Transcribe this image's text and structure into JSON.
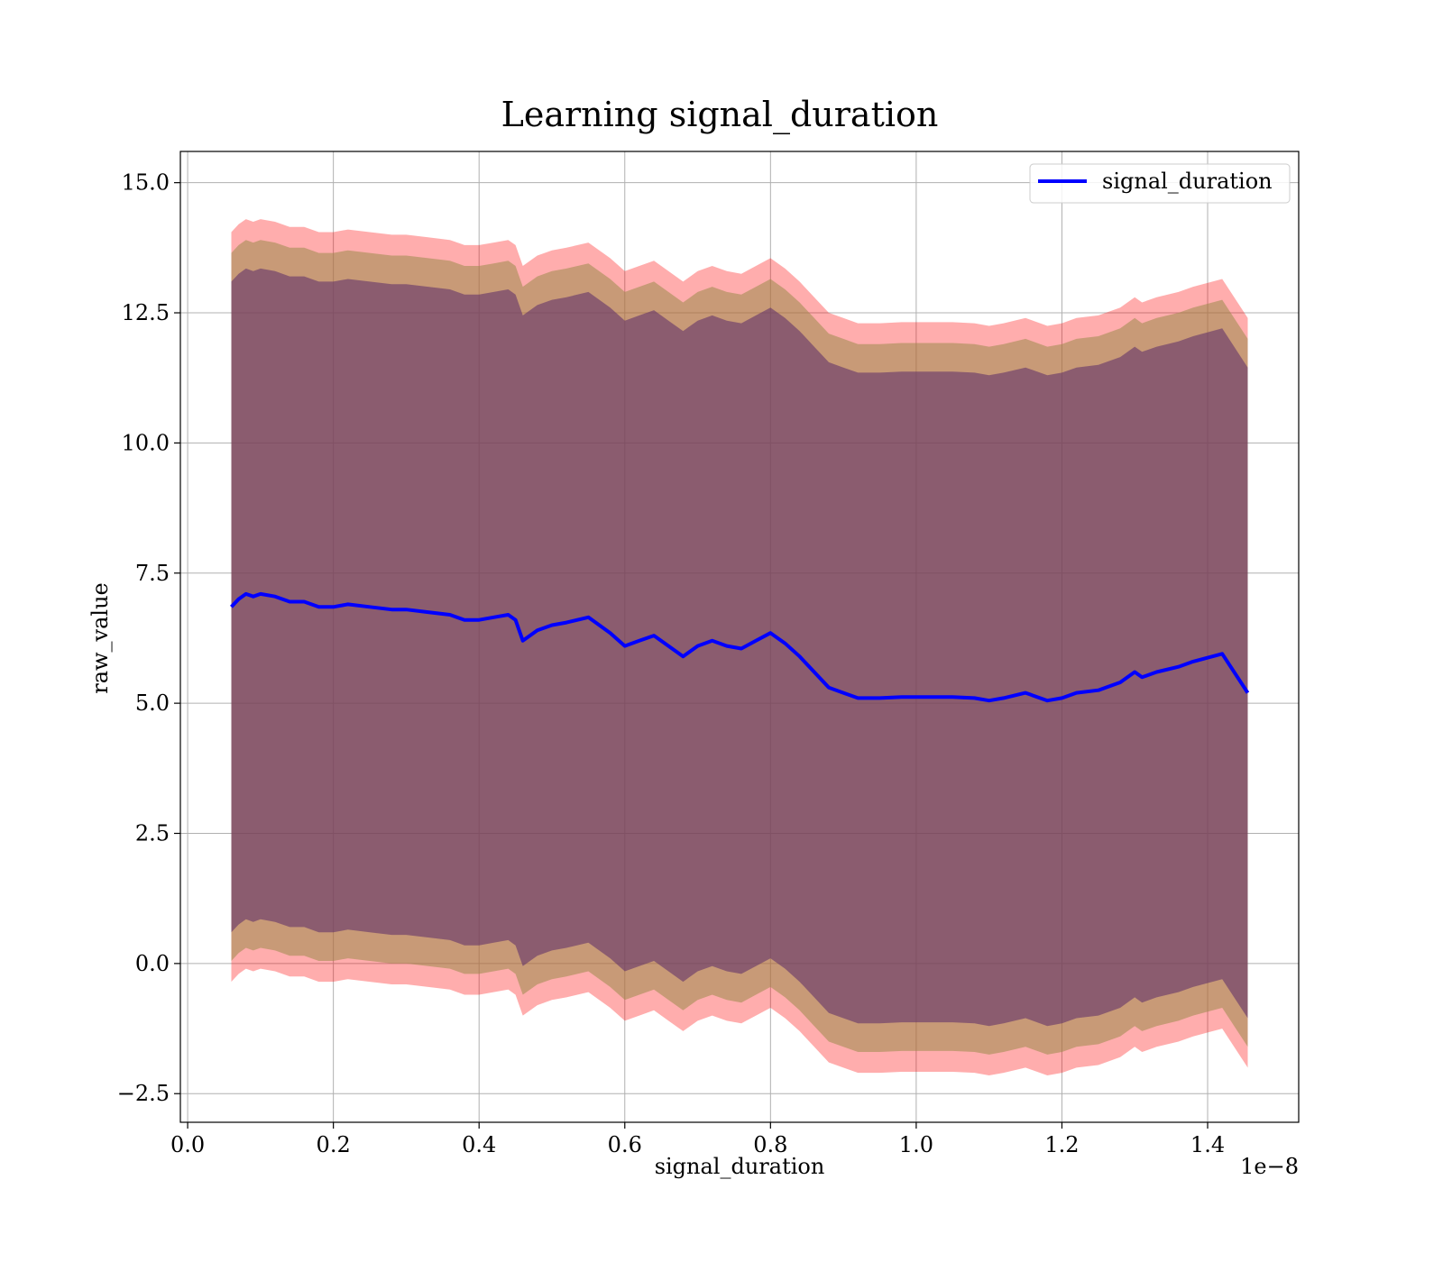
{
  "chart_data": {
    "type": "line",
    "title": "Learning signal_duration",
    "xlabel": "signal_duration",
    "ylabel": "raw_value",
    "x_scale_note": "1e−8",
    "xlim": [
      -0.01,
      1.525
    ],
    "ylim": [
      -3.05,
      15.6
    ],
    "x_ticks": [
      0.0,
      0.2,
      0.4,
      0.6,
      0.8,
      1.0,
      1.2,
      1.4
    ],
    "x_tick_labels": [
      "0.0",
      "0.2",
      "0.4",
      "0.6",
      "0.8",
      "1.0",
      "1.2",
      "1.4"
    ],
    "y_ticks": [
      -2.5,
      0.0,
      2.5,
      5.0,
      7.5,
      10.0,
      12.5,
      15.0
    ],
    "y_tick_labels": [
      "−2.5",
      "0.0",
      "2.5",
      "5.0",
      "7.5",
      "10.0",
      "12.5",
      "15.0"
    ],
    "grid": true,
    "legend": {
      "position": "top-right",
      "entries": [
        "signal_duration"
      ]
    },
    "colors": {
      "line": "#0000ff",
      "band_outer": "#ff0000",
      "band_middle": "#9a8a4a",
      "band_inner": "#5a2a6a",
      "grid": "#b0b0b0"
    },
    "series": [
      {
        "name": "signal_duration",
        "x": [
          0.06,
          0.07,
          0.08,
          0.09,
          0.1,
          0.12,
          0.14,
          0.16,
          0.18,
          0.2,
          0.22,
          0.25,
          0.28,
          0.3,
          0.33,
          0.36,
          0.38,
          0.4,
          0.42,
          0.44,
          0.45,
          0.46,
          0.48,
          0.5,
          0.52,
          0.55,
          0.58,
          0.6,
          0.62,
          0.64,
          0.66,
          0.68,
          0.7,
          0.72,
          0.74,
          0.76,
          0.78,
          0.8,
          0.82,
          0.84,
          0.86,
          0.88,
          0.9,
          0.92,
          0.95,
          0.98,
          1.0,
          1.05,
          1.08,
          1.1,
          1.12,
          1.15,
          1.18,
          1.2,
          1.22,
          1.25,
          1.28,
          1.3,
          1.31,
          1.33,
          1.36,
          1.38,
          1.42,
          1.455
        ],
        "y": [
          6.85,
          7.0,
          7.1,
          7.05,
          7.1,
          7.05,
          6.95,
          6.95,
          6.85,
          6.85,
          6.9,
          6.85,
          6.8,
          6.8,
          6.75,
          6.7,
          6.6,
          6.6,
          6.65,
          6.7,
          6.6,
          6.2,
          6.4,
          6.5,
          6.55,
          6.65,
          6.35,
          6.1,
          6.2,
          6.3,
          6.1,
          5.9,
          6.1,
          6.2,
          6.1,
          6.05,
          6.2,
          6.35,
          6.15,
          5.9,
          5.6,
          5.3,
          5.2,
          5.1,
          5.1,
          5.12,
          5.12,
          5.12,
          5.1,
          5.05,
          5.1,
          5.2,
          5.05,
          5.1,
          5.2,
          5.25,
          5.4,
          5.6,
          5.5,
          5.6,
          5.7,
          5.8,
          5.95,
          5.2
        ]
      }
    ],
    "bands": [
      {
        "label": "outer",
        "lower_offset": -7.2,
        "upper_offset": 7.2
      },
      {
        "label": "middle",
        "lower_offset": -6.8,
        "upper_offset": 6.8
      },
      {
        "label": "inner",
        "lower_offset": -6.25,
        "upper_offset": 6.25
      }
    ]
  }
}
